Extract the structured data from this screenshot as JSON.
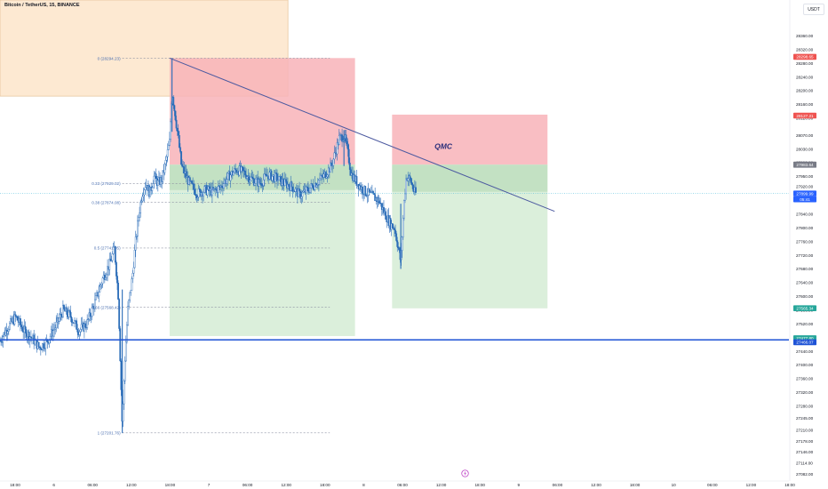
{
  "header": {
    "symbol_title": "Bitcoin / TetherUS, 15, BINANCE",
    "currency": "USDT"
  },
  "icons": {
    "time_marker": "lightning-icon"
  },
  "colors": {
    "up": "#26a69a",
    "down": "#ef5350",
    "candle": "#2a6cb8",
    "stop_zone": "#f8b3b8",
    "target_zone": "#d5ecd5",
    "box": "#fde9d2",
    "trendline": "#4c5aa0",
    "support_line": "#1e53d6",
    "fib_text": "#4a6fb0"
  },
  "chart_data": {
    "type": "candlestick",
    "price_axis": {
      "min": 27082,
      "max": 28384,
      "ticks": [
        28360,
        28320,
        28280,
        28240,
        28200,
        28160,
        28120,
        28070,
        28030,
        27990,
        27950,
        27920,
        27880,
        27840,
        27800,
        27760,
        27720,
        27680,
        27640,
        27600,
        27560,
        27520,
        27480,
        27440,
        27400,
        27360,
        27320,
        27280,
        27245,
        27210,
        27178,
        27146,
        27114,
        27082
      ],
      "tick_labels": [
        "28360.00",
        "28320.00",
        "28280.00",
        "28240.00",
        "28200.00",
        "28160.00",
        "28120.00",
        "28070.00",
        "28030.00",
        "27990.00",
        "27950.00",
        "27920.00",
        "27880.00",
        "27840.00",
        "27800.00",
        "27760.00",
        "27720.00",
        "27680.00",
        "27640.00",
        "27600.00",
        "27560.00",
        "27520.00",
        "27480.00",
        "27440.00",
        "27400.00",
        "27360.00",
        "27320.00",
        "27280.00",
        "27245.00",
        "27210.00",
        "27178.00",
        "27146.00",
        "27114.00",
        "27082.00"
      ]
    },
    "time_axis": {
      "labels": [
        "18:00",
        "6",
        "06:00",
        "12:00",
        "18:00",
        "7",
        "06:00",
        "12:00",
        "18:00",
        "8",
        "06:00",
        "12:00",
        "18:00",
        "9",
        "06:00",
        "12:00",
        "18:00",
        "10",
        "06:00",
        "12:00",
        "18:00"
      ]
    },
    "price_labels": [
      {
        "text": "28298.65",
        "value": 28298.65,
        "color": "#ef5350"
      },
      {
        "text": "28127.21",
        "value": 28127.21,
        "color": "#ef5350"
      },
      {
        "text": "27984.42",
        "value": 27984.42,
        "color": "#787b86"
      },
      {
        "text": "27983.64",
        "value": 27983.64,
        "color": "#787b86"
      },
      {
        "text": "27899.99",
        "value": 27899.99,
        "color": "#2962ff"
      },
      {
        "text": "05:41",
        "value": 27883,
        "color": "#2962ff"
      },
      {
        "text": "27565.34",
        "value": 27565.34,
        "color": "#26a69a"
      },
      {
        "text": "27477.80",
        "value": 27477.8,
        "color": "#26a69a"
      },
      {
        "text": "27466.07",
        "value": 27466.07,
        "color": "#1e53d6"
      }
    ],
    "fib_levels": [
      {
        "label": "0 (28294.23)",
        "value": 28294.23
      },
      {
        "label": "0.33 (27929.02)",
        "value": 27929.02
      },
      {
        "label": "0.38 (27874.08)",
        "value": 27874.08
      },
      {
        "label": "0.5 (27741.05)",
        "value": 27741.05
      },
      {
        "label": "0.66 (27568.42)",
        "value": 27568.42
      },
      {
        "label": "1 (27201.76)",
        "value": 27201.76
      }
    ],
    "annotation": "QMC",
    "trade_zones": [
      {
        "kind": "stop",
        "top": 28295,
        "bottom": 27984,
        "t_start": 0.215,
        "t_end": 0.45
      },
      {
        "kind": "target",
        "top": 27984,
        "bottom": 27484,
        "t_start": 0.215,
        "t_end": 0.45
      },
      {
        "kind": "stop",
        "top": 28130,
        "bottom": 27984,
        "t_start": 0.497,
        "t_end": 0.694
      },
      {
        "kind": "target",
        "top": 27984,
        "bottom": 27565,
        "t_start": 0.497,
        "t_end": 0.694
      }
    ],
    "range_box": {
      "top": 28384,
      "bottom": 28184,
      "t_start": 0.0,
      "t_end": 0.365
    },
    "trendline": {
      "t_start": 0.215,
      "p_start": 28295,
      "t_end": 0.703,
      "p_end": 27848
    },
    "support_level": 27473,
    "current_price": 27899.99,
    "price_series": [
      [
        0.0,
        27470
      ],
      [
        0.01,
        27510
      ],
      [
        0.02,
        27540
      ],
      [
        0.03,
        27500
      ],
      [
        0.04,
        27480
      ],
      [
        0.05,
        27450
      ],
      [
        0.06,
        27470
      ],
      [
        0.07,
        27510
      ],
      [
        0.08,
        27560
      ],
      [
        0.09,
        27540
      ],
      [
        0.1,
        27500
      ],
      [
        0.11,
        27520
      ],
      [
        0.12,
        27580
      ],
      [
        0.13,
        27650
      ],
      [
        0.14,
        27700
      ],
      [
        0.145,
        27740
      ],
      [
        0.15,
        27600
      ],
      [
        0.155,
        27220
      ],
      [
        0.158,
        27400
      ],
      [
        0.162,
        27560
      ],
      [
        0.168,
        27660
      ],
      [
        0.172,
        27760
      ],
      [
        0.176,
        27840
      ],
      [
        0.18,
        27900
      ],
      [
        0.185,
        27930
      ],
      [
        0.19,
        27900
      ],
      [
        0.195,
        27950
      ],
      [
        0.2,
        27930
      ],
      [
        0.205,
        27940
      ],
      [
        0.21,
        27990
      ],
      [
        0.215,
        28050
      ],
      [
        0.218,
        28200
      ],
      [
        0.222,
        28130
      ],
      [
        0.226,
        28060
      ],
      [
        0.23,
        27980
      ],
      [
        0.24,
        27930
      ],
      [
        0.25,
        27900
      ],
      [
        0.26,
        27910
      ],
      [
        0.27,
        27905
      ],
      [
        0.28,
        27920
      ],
      [
        0.29,
        27950
      ],
      [
        0.3,
        27970
      ],
      [
        0.31,
        27960
      ],
      [
        0.32,
        27940
      ],
      [
        0.33,
        27930
      ],
      [
        0.34,
        27955
      ],
      [
        0.35,
        27945
      ],
      [
        0.36,
        27930
      ],
      [
        0.37,
        27920
      ],
      [
        0.38,
        27895
      ],
      [
        0.39,
        27910
      ],
      [
        0.4,
        27930
      ],
      [
        0.41,
        27950
      ],
      [
        0.42,
        27980
      ],
      [
        0.43,
        28060
      ],
      [
        0.436,
        28070
      ],
      [
        0.44,
        28030
      ],
      [
        0.445,
        27960
      ],
      [
        0.45,
        27940
      ],
      [
        0.46,
        27910
      ],
      [
        0.47,
        27895
      ],
      [
        0.48,
        27880
      ],
      [
        0.488,
        27840
      ],
      [
        0.495,
        27810
      ],
      [
        0.5,
        27800
      ],
      [
        0.505,
        27740
      ],
      [
        0.508,
        27700
      ],
      [
        0.512,
        27870
      ],
      [
        0.515,
        27950
      ],
      [
        0.52,
        27940
      ],
      [
        0.525,
        27905
      ],
      [
        0.527,
        27900
      ]
    ]
  }
}
